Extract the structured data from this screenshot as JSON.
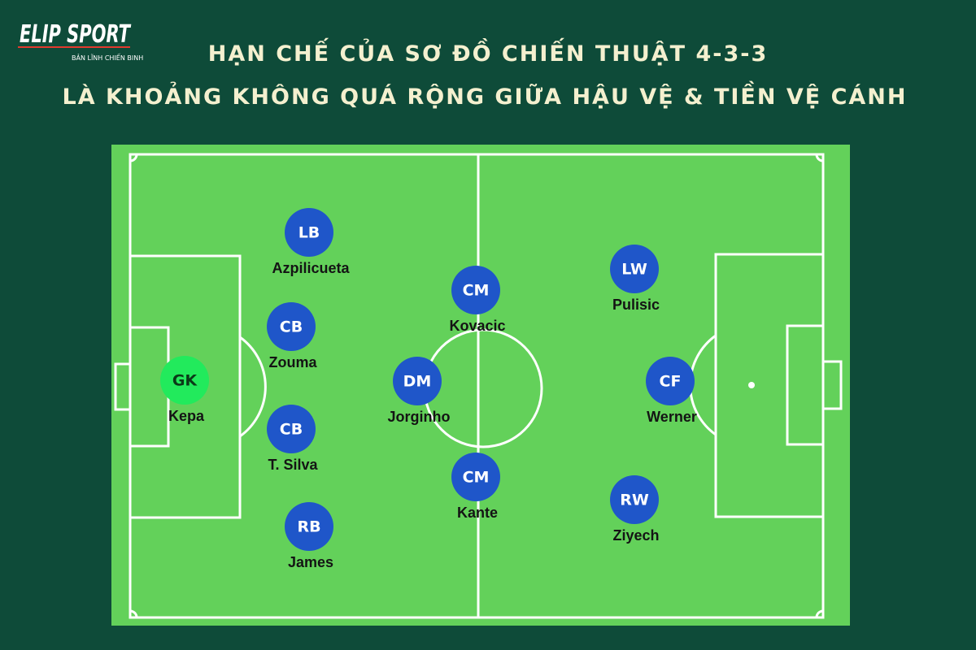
{
  "logo": {
    "brand": "ELIP SPORT",
    "slogan": "BẢN LĨNH CHIẾN BINH"
  },
  "header": {
    "title_line1": "HẠN CHẾ CỦA SƠ ĐỒ CHIẾN THUẬT 4-3-3",
    "title_line2": "LÀ KHOẢNG KHÔNG QUÁ RỘNG GIỮA HẬU VỆ & TIỀN VỆ CÁNH"
  },
  "players": [
    {
      "position": "GK",
      "name": "Kepa"
    },
    {
      "position": "LB",
      "name": "Azpilicueta"
    },
    {
      "position": "CB",
      "name": "Zouma"
    },
    {
      "position": "CB",
      "name": "T. Silva"
    },
    {
      "position": "RB",
      "name": "James"
    },
    {
      "position": "CM",
      "name": "Kovacic"
    },
    {
      "position": "DM",
      "name": "Jorginho"
    },
    {
      "position": "CM",
      "name": "Kante"
    },
    {
      "position": "LW",
      "name": "Pulisic"
    },
    {
      "position": "CF",
      "name": "Werner"
    },
    {
      "position": "RW",
      "name": "Ziyech"
    }
  ]
}
